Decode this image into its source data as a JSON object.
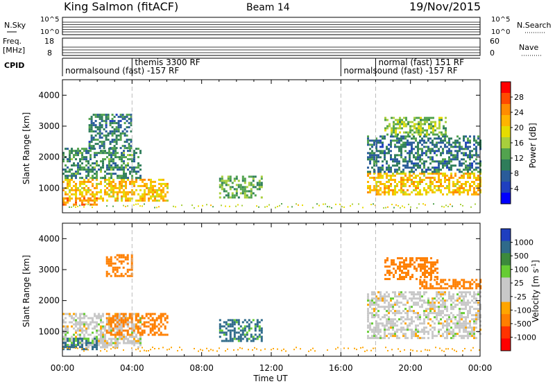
{
  "header": {
    "station": "King Salmon (fitACF)",
    "beam": "Beam 14",
    "date": "19/Nov/2015"
  },
  "strips": {
    "nsky_label": "N.Sky",
    "nsky_ticks": [
      "10^5",
      "10^0"
    ],
    "nsky_right_ticks": [
      "10^5",
      "10^0"
    ],
    "nsearch_label": "N.Search",
    "freq_label_1": "Freq.",
    "freq_label_2": "[MHz]",
    "freq_ticks": [
      "18",
      "8"
    ],
    "nave_label": "Nave",
    "nave_ticks": [
      "60",
      "0"
    ],
    "cpid_label": "CPID",
    "cpid_segments": [
      {
        "text": "normalsound (fast) -157 RF",
        "row": 2,
        "start": 0.0
      },
      {
        "text": "themis 3300 RF",
        "row": 1,
        "start": 4.0
      },
      {
        "text": "normalsound (fast) -157 RF",
        "row": 2,
        "start": 16.0
      },
      {
        "text": "normal (fast) 151 RF",
        "row": 1,
        "start": 18.0
      }
    ],
    "cpid_dividers": [
      4.0,
      16.0,
      18.0
    ]
  },
  "colorbars": {
    "power": {
      "label": "Power [dB]",
      "ticks": [
        "28",
        "24",
        "20",
        "16",
        "12",
        "8",
        "4"
      ],
      "colors": [
        "#ff0000",
        "#ff4a00",
        "#ff8c00",
        "#ffb400",
        "#e6dc00",
        "#a8cf3c",
        "#52a34e",
        "#2e7d5a",
        "#2a5c9a",
        "#1f3fbf",
        "#0000ff"
      ]
    },
    "velocity": {
      "label": "Velocity [m s",
      "label_sup": "-1",
      "label_end": "]",
      "ticks": [
        "1000",
        "500",
        "100",
        "25",
        "-25",
        "-100",
        "-500",
        "-1000"
      ],
      "colors": [
        "#1f3fbf",
        "#2f6a8a",
        "#3c8a3c",
        "#66cc33",
        "#c8c8c8",
        "#c8c8c8",
        "#ffa500",
        "#ff7f00",
        "#ff3300",
        "#ff0000"
      ]
    }
  },
  "chart_data": [
    {
      "type": "heatmap",
      "title": "Power",
      "xlabel": "Time UT",
      "ylabel": "Slant Range [km]",
      "x_ticks": [
        "00:00",
        "04:00",
        "08:00",
        "12:00",
        "16:00",
        "20:00",
        "00:00"
      ],
      "y_ticks": [
        "1000",
        "2000",
        "3000",
        "4000"
      ],
      "xlim": [
        0,
        24
      ],
      "ylim": [
        200,
        4500
      ],
      "regions": [
        {
          "t0": 0.0,
          "t1": 6.0,
          "r0": 600,
          "r1": 1300,
          "value": 20
        },
        {
          "t0": 0.0,
          "t1": 2.0,
          "r0": 450,
          "r1": 700,
          "value": 24
        },
        {
          "t0": 0.0,
          "t1": 4.5,
          "r0": 1300,
          "r1": 2300,
          "value": 10
        },
        {
          "t0": 1.5,
          "t1": 4.0,
          "r0": 2300,
          "r1": 3400,
          "value": 8
        },
        {
          "t0": 9.0,
          "t1": 11.5,
          "r0": 700,
          "r1": 1400,
          "value": 12
        },
        {
          "t0": 17.5,
          "t1": 24.0,
          "r0": 800,
          "r1": 1500,
          "value": 20
        },
        {
          "t0": 17.5,
          "t1": 24.0,
          "r0": 1500,
          "r1": 2700,
          "value": 8
        },
        {
          "t0": 18.5,
          "t1": 22.0,
          "r0": 2700,
          "r1": 3300,
          "value": 14
        }
      ]
    },
    {
      "type": "heatmap",
      "title": "Velocity",
      "xlabel": "Time UT",
      "ylabel": "Slant Range [km]",
      "x_ticks": [
        "00:00",
        "04:00",
        "08:00",
        "12:00",
        "16:00",
        "20:00",
        "00:00"
      ],
      "y_ticks": [
        "1000",
        "2000",
        "3000",
        "4000"
      ],
      "xlim": [
        0,
        24
      ],
      "ylim": [
        200,
        4500
      ],
      "regions": [
        {
          "t0": 0.0,
          "t1": 4.5,
          "r0": 500,
          "r1": 1600,
          "value": 0
        },
        {
          "t0": 0.0,
          "t1": 2.0,
          "r0": 450,
          "r1": 800,
          "value": 120
        },
        {
          "t0": 2.5,
          "t1": 6.0,
          "r0": 900,
          "r1": 1600,
          "value": -150
        },
        {
          "t0": 2.5,
          "t1": 4.0,
          "r0": 2800,
          "r1": 3500,
          "value": -300
        },
        {
          "t0": 9.0,
          "t1": 11.5,
          "r0": 700,
          "r1": 1400,
          "value": 120
        },
        {
          "t0": 17.5,
          "t1": 24.0,
          "r0": 800,
          "r1": 2300,
          "value": 0
        },
        {
          "t0": 18.5,
          "t1": 21.5,
          "r0": 2700,
          "r1": 3400,
          "value": -300
        },
        {
          "t0": 20.5,
          "t1": 24.0,
          "r0": 2400,
          "r1": 2700,
          "value": -150
        }
      ]
    }
  ]
}
